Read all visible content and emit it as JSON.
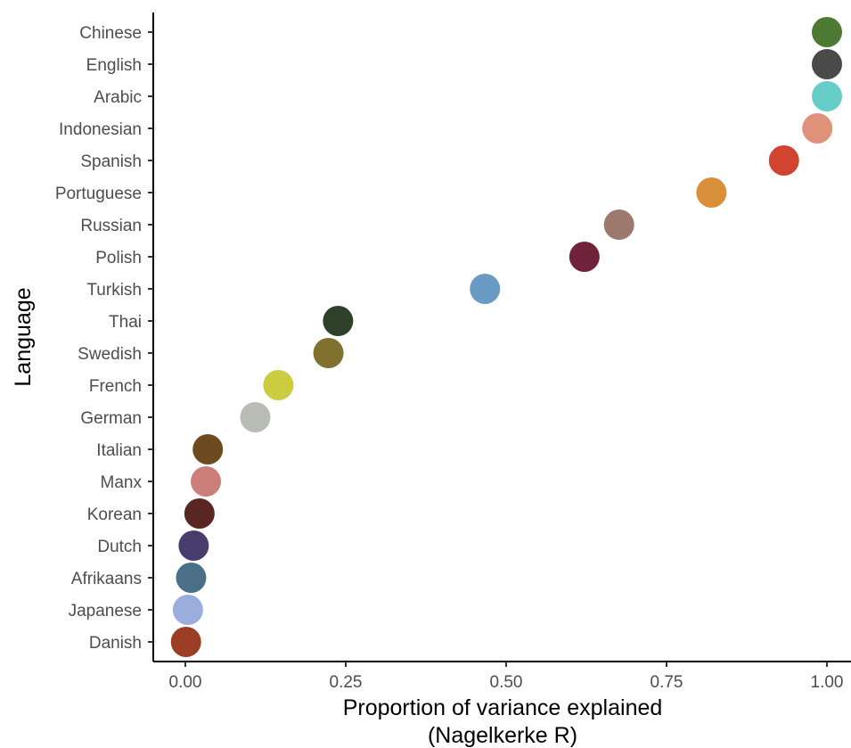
{
  "chart_data": {
    "type": "scatter",
    "xlabel_line1": "Proportion of variance explained",
    "xlabel_line2": "(Nagelkerke R)",
    "ylabel": "Language",
    "xlim": [
      0,
      1
    ],
    "x_ticks": [
      0,
      0.25,
      0.5,
      0.75,
      1
    ],
    "x_tick_labels": [
      "0.00",
      "0.25",
      "0.50",
      "0.75",
      "1.00"
    ],
    "grid": false,
    "legend": "none",
    "points": [
      {
        "language": "Chinese",
        "value": 1.0,
        "color": "#4f7a33"
      },
      {
        "language": "English",
        "value": 1.0,
        "color": "#4a4a4a"
      },
      {
        "language": "Arabic",
        "value": 1.0,
        "color": "#66cdc8"
      },
      {
        "language": "Indonesian",
        "value": 0.985,
        "color": "#e0927a"
      },
      {
        "language": "Spanish",
        "value": 0.933,
        "color": "#d04430"
      },
      {
        "language": "Portuguese",
        "value": 0.82,
        "color": "#d8913a"
      },
      {
        "language": "Russian",
        "value": 0.676,
        "color": "#9c786d"
      },
      {
        "language": "Polish",
        "value": 0.622,
        "color": "#70223a"
      },
      {
        "language": "Turkish",
        "value": 0.467,
        "color": "#6a9bc4"
      },
      {
        "language": "Thai",
        "value": 0.238,
        "color": "#2e4128"
      },
      {
        "language": "Swedish",
        "value": 0.223,
        "color": "#80712f"
      },
      {
        "language": "French",
        "value": 0.145,
        "color": "#cccc40"
      },
      {
        "language": "German",
        "value": 0.109,
        "color": "#b8bcb5"
      },
      {
        "language": "Italian",
        "value": 0.035,
        "color": "#6e4a20"
      },
      {
        "language": "Manx",
        "value": 0.032,
        "color": "#cc7f7a"
      },
      {
        "language": "Korean",
        "value": 0.022,
        "color": "#5a2622"
      },
      {
        "language": "Dutch",
        "value": 0.013,
        "color": "#483c6c"
      },
      {
        "language": "Afrikaans",
        "value": 0.009,
        "color": "#4a6f86"
      },
      {
        "language": "Japanese",
        "value": 0.004,
        "color": "#9aaddc"
      },
      {
        "language": "Danish",
        "value": 0.001,
        "color": "#9c3e25"
      }
    ]
  }
}
